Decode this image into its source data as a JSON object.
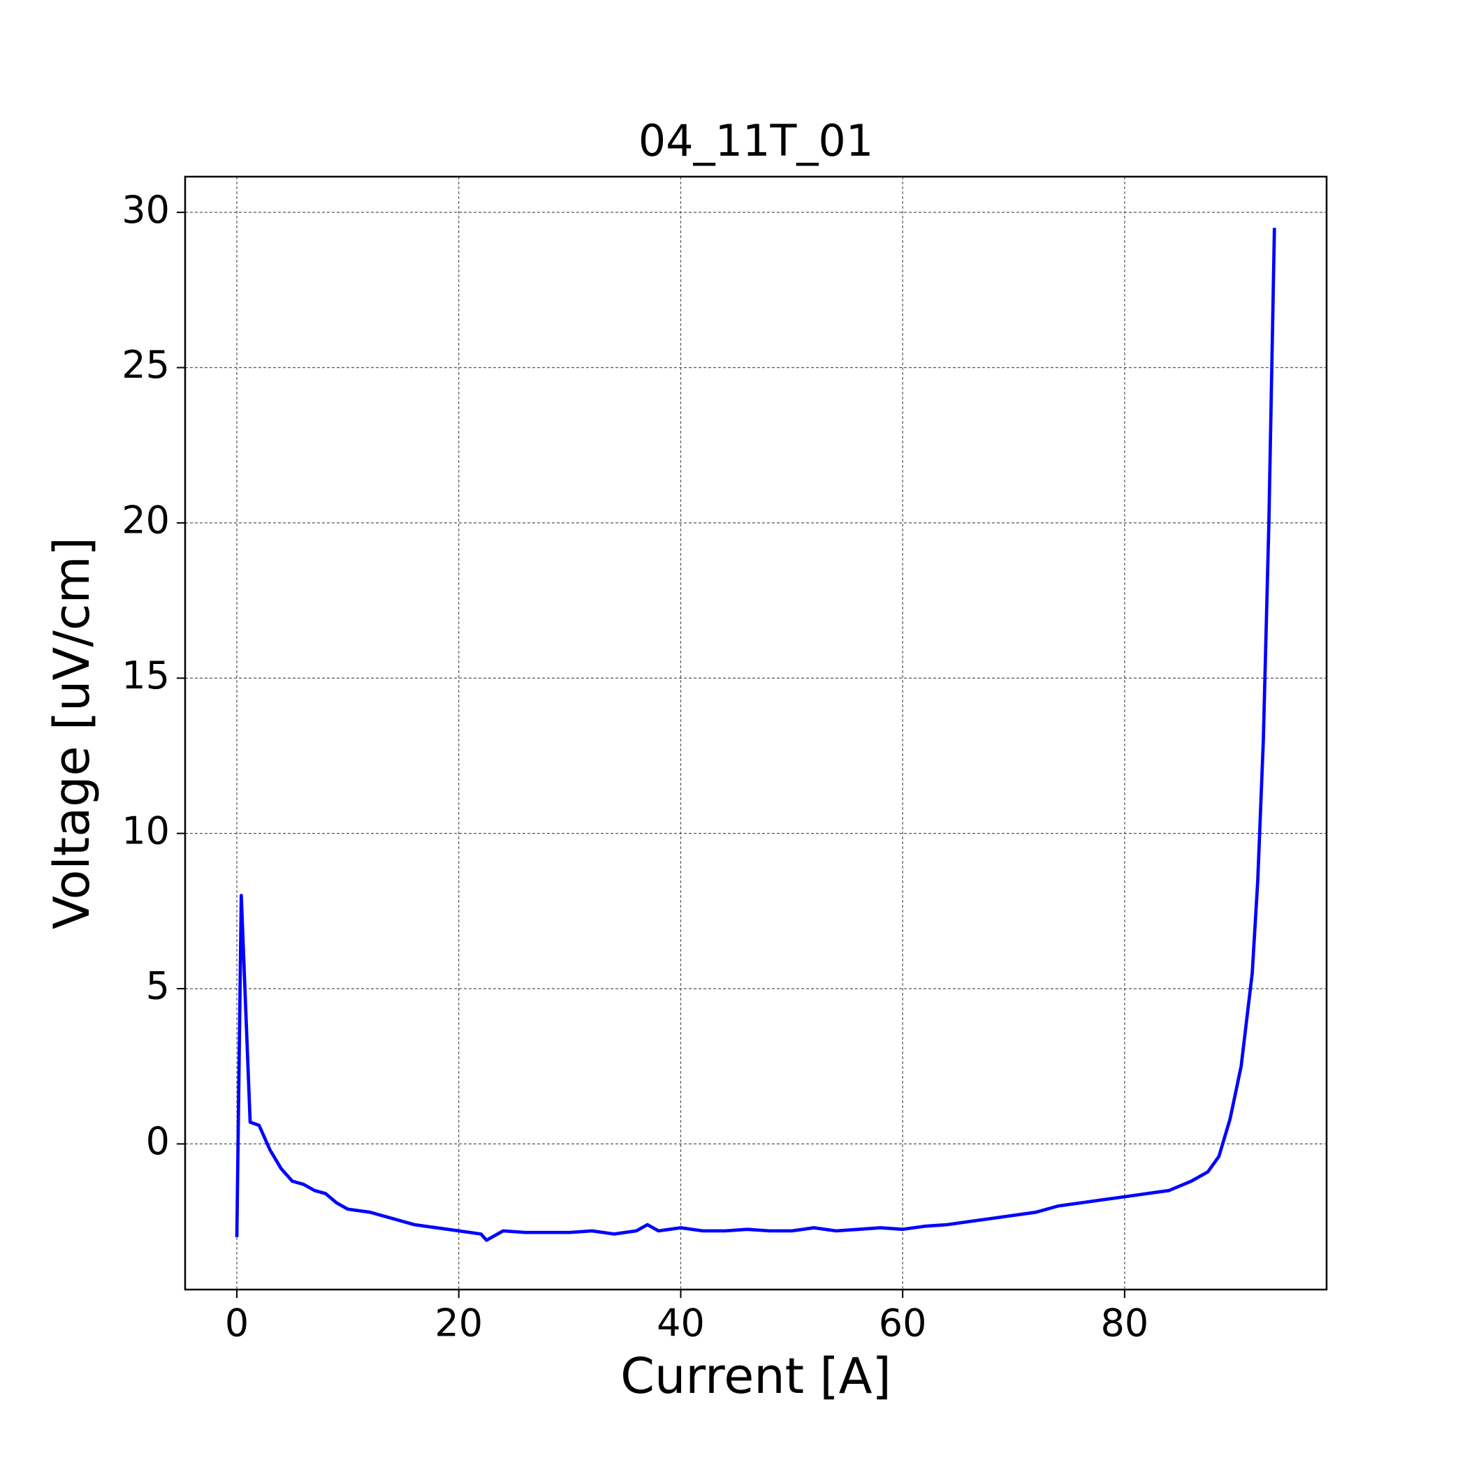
{
  "chart_data": {
    "type": "line",
    "title": "04_11T_01",
    "x_label": "Current [A]",
    "y_label": "Voltage [uV/cm]",
    "x": [
      0,
      0.4,
      1.2,
      2,
      3,
      4,
      5,
      6,
      7,
      8,
      9,
      10,
      12,
      14,
      16,
      18,
      20,
      22,
      22.5,
      24,
      26,
      28,
      30,
      32,
      34,
      36,
      37,
      38,
      40,
      42,
      44,
      46,
      48,
      50,
      52,
      54,
      56,
      58,
      60,
      62,
      64,
      66,
      68,
      70,
      72,
      74,
      76,
      78,
      80,
      82,
      84,
      86,
      87.5,
      88.5,
      89.5,
      90.5,
      91.5,
      92,
      92.5,
      93,
      93.5
    ],
    "series": [
      {
        "name": "04_11T_01",
        "color": "#0000ff",
        "values": [
          -3.0,
          8.0,
          0.7,
          0.6,
          -0.2,
          -0.8,
          -1.2,
          -1.3,
          -1.5,
          -1.6,
          -1.9,
          -2.1,
          -2.2,
          -2.4,
          -2.6,
          -2.7,
          -2.8,
          -2.9,
          -3.1,
          -2.8,
          -2.85,
          -2.85,
          -2.85,
          -2.8,
          -2.9,
          -2.8,
          -2.6,
          -2.8,
          -2.7,
          -2.8,
          -2.8,
          -2.75,
          -2.8,
          -2.8,
          -2.7,
          -2.8,
          -2.75,
          -2.7,
          -2.75,
          -2.65,
          -2.6,
          -2.5,
          -2.4,
          -2.3,
          -2.2,
          -2.0,
          -1.9,
          -1.8,
          -1.7,
          -1.6,
          -1.5,
          -1.2,
          -0.9,
          -0.4,
          0.8,
          2.5,
          5.5,
          8.5,
          13,
          20,
          29.5
        ]
      }
    ],
    "xlim": [
      -4.66,
      98.2
    ],
    "ylim": [
      -4.69,
      31.15
    ],
    "xticks": [
      0,
      20,
      40,
      60,
      80
    ],
    "yticks": [
      0,
      5,
      10,
      15,
      20,
      25,
      30
    ],
    "grid": true
  }
}
